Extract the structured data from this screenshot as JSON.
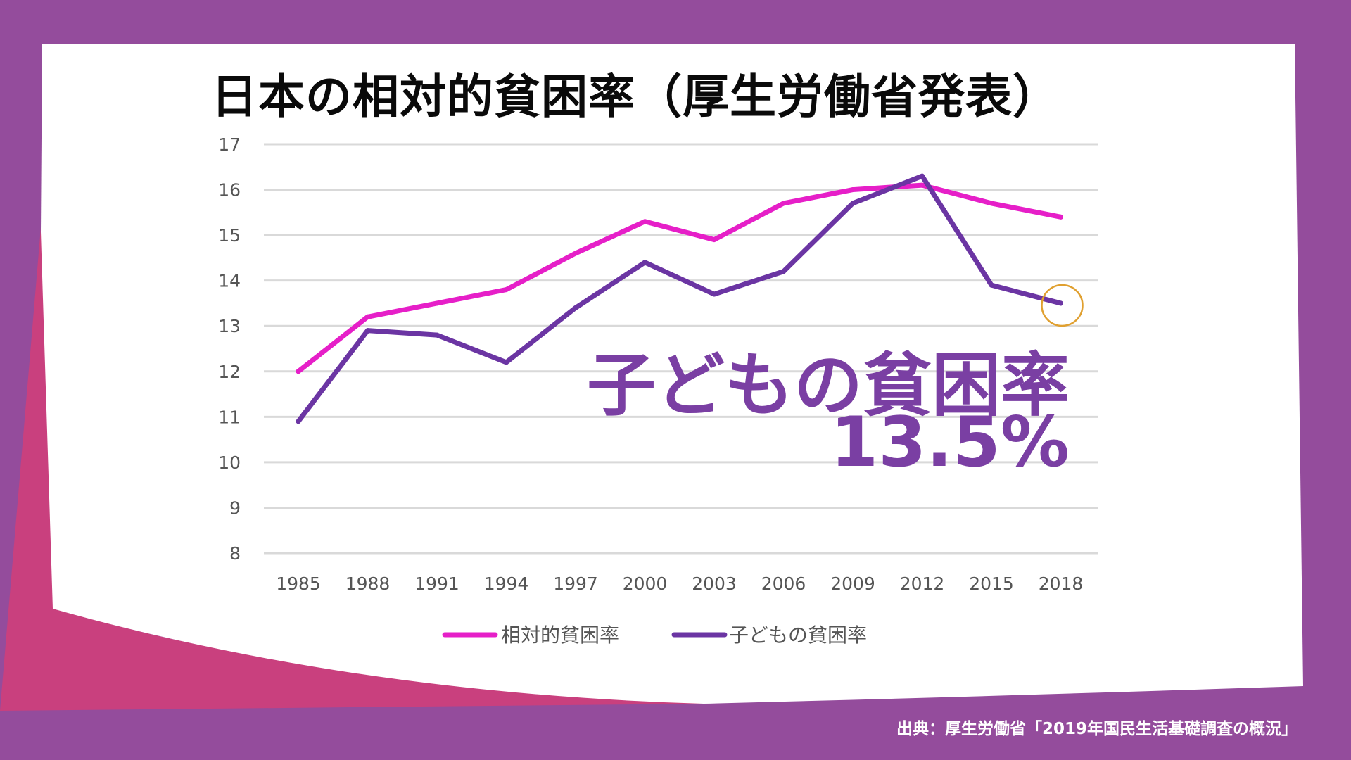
{
  "title": "日本の相対的貧困率（厚生労働省発表）",
  "callout": {
    "label": "子どもの貧困率",
    "value": "13.5%"
  },
  "source": "出典：厚生労働省「2019年国民生活基礎調査の概況」",
  "colors": {
    "background": "#944c9c",
    "panel": "#ffffff",
    "accent_pink": "#c9407e",
    "relative_series": "#e61fc8",
    "child_series": "#6b35a3",
    "callout_text": "#7a3fa3",
    "highlight_circle": "#e0a030"
  },
  "chart_data": {
    "type": "line",
    "x": [
      "1985",
      "1988",
      "1991",
      "1994",
      "1997",
      "2000",
      "2003",
      "2006",
      "2009",
      "2012",
      "2015",
      "2018"
    ],
    "series": [
      {
        "name": "相対的貧困率",
        "color": "#e61fc8",
        "values": [
          12.0,
          13.2,
          13.5,
          13.8,
          14.6,
          15.3,
          14.9,
          15.7,
          16.0,
          16.1,
          15.7,
          15.4
        ]
      },
      {
        "name": "子どもの貧困率",
        "color": "#6b35a3",
        "values": [
          10.9,
          12.9,
          12.8,
          12.2,
          13.4,
          14.4,
          13.7,
          14.2,
          15.7,
          16.3,
          13.9,
          13.5
        ]
      }
    ],
    "ylim": [
      8,
      17
    ],
    "yticks": [
      8,
      9,
      10,
      11,
      12,
      13,
      14,
      15,
      16,
      17
    ],
    "grid": true,
    "legend": "bottom",
    "highlight": {
      "series": "子どもの貧困率",
      "x": "2018"
    }
  }
}
